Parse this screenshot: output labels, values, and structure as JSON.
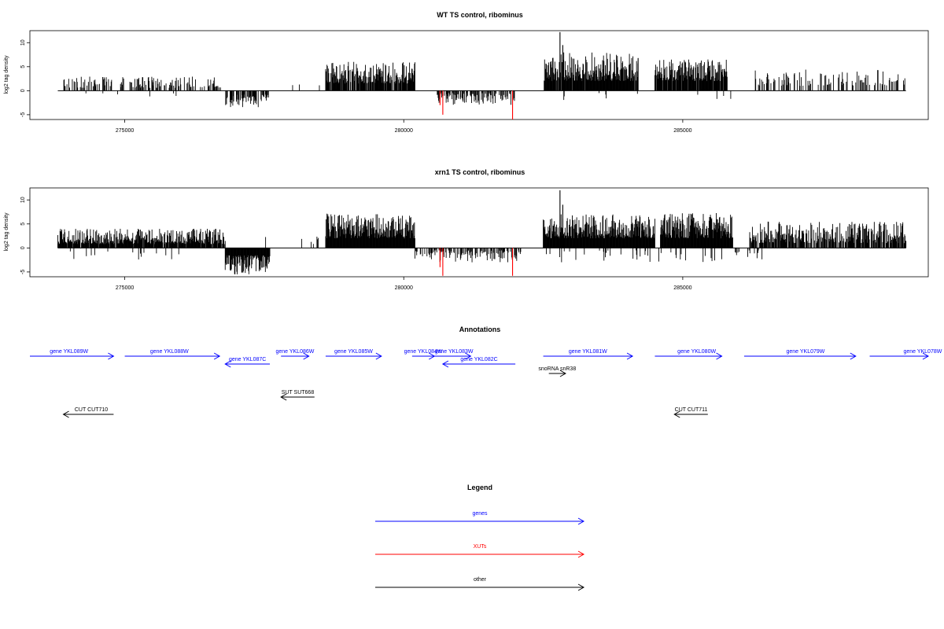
{
  "colors": {
    "gene": "#0000ff",
    "xut": "#ff0000",
    "other": "#000000",
    "xut_bar": "#ff0000",
    "bar": "#000000"
  },
  "chart_data": [
    {
      "type": "bar",
      "title": "WT TS control, ribominus",
      "ylabel": "log2 tag density",
      "xlim": [
        273300,
        289400
      ],
      "ylim": [
        -6,
        12.5
      ],
      "x_ticks": [
        275000,
        280000,
        285000
      ],
      "x_tick_labels": [
        "275000",
        "280000",
        "285000"
      ],
      "y_ticks": [
        -5,
        0,
        5,
        10
      ],
      "y_tick_labels": [
        "-5",
        "0",
        "5",
        "10"
      ],
      "baseline_range": [
        273800,
        289000
      ],
      "forward_regions": [
        {
          "start": 273900,
          "end": 276800,
          "density": 0.35,
          "min": 0.6,
          "max": 3.0
        },
        {
          "start": 278000,
          "end": 278500,
          "density": 0.04,
          "min": 1.0,
          "max": 1.5
        },
        {
          "start": 278600,
          "end": 280200,
          "density": 0.85,
          "min": 1.5,
          "max": 6.0
        },
        {
          "start": 282500,
          "end": 284200,
          "density": 0.95,
          "min": 2.0,
          "max": 8.0
        },
        {
          "start": 284500,
          "end": 285800,
          "density": 0.9,
          "min": 2.0,
          "max": 6.5
        },
        {
          "start": 286300,
          "end": 289000,
          "density": 0.3,
          "min": 1.0,
          "max": 4.5
        }
      ],
      "reverse_regions": [
        {
          "start": 274200,
          "end": 276000,
          "density": 0.02,
          "min": 0.5,
          "max": 1.2
        },
        {
          "start": 276800,
          "end": 277600,
          "density": 0.6,
          "min": 0.8,
          "max": 3.5
        },
        {
          "start": 280600,
          "end": 282000,
          "density": 0.55,
          "min": 0.5,
          "max": 3.0
        },
        {
          "start": 282500,
          "end": 285900,
          "density": 0.02,
          "min": 0.5,
          "max": 2.0
        }
      ],
      "spikes": [
        {
          "x": 282800,
          "y": 12.2
        },
        {
          "x": 282850,
          "y": 9.5
        },
        {
          "x": 284200,
          "y": 6.8
        }
      ],
      "highlight_bars": [
        {
          "x": 280650,
          "y": -3.0
        },
        {
          "x": 280700,
          "y": -5.0
        },
        {
          "x": 281950,
          "y": -6.0
        }
      ]
    },
    {
      "type": "bar",
      "title": "xrn1 TS control, ribominus",
      "ylabel": "log2 tag density",
      "xlim": [
        273300,
        289400
      ],
      "ylim": [
        -6,
        12.5
      ],
      "x_ticks": [
        275000,
        280000,
        285000
      ],
      "x_tick_labels": [
        "275000",
        "280000",
        "285000"
      ],
      "y_ticks": [
        -5,
        0,
        5,
        10
      ],
      "y_tick_labels": [
        "-5",
        "0",
        "5",
        "10"
      ],
      "baseline_range": [
        273800,
        289000
      ],
      "forward_regions": [
        {
          "start": 273800,
          "end": 276800,
          "density": 0.9,
          "min": 0.8,
          "max": 4.0
        },
        {
          "start": 277500,
          "end": 278500,
          "density": 0.1,
          "min": 0.8,
          "max": 3.0
        },
        {
          "start": 278600,
          "end": 280200,
          "density": 1.0,
          "min": 2.0,
          "max": 7.2
        },
        {
          "start": 282500,
          "end": 284500,
          "density": 1.0,
          "min": 2.0,
          "max": 7.0
        },
        {
          "start": 284600,
          "end": 285900,
          "density": 1.0,
          "min": 2.0,
          "max": 7.5
        },
        {
          "start": 286200,
          "end": 289000,
          "density": 0.8,
          "min": 1.0,
          "max": 5.5
        }
      ],
      "reverse_regions": [
        {
          "start": 274000,
          "end": 276000,
          "density": 0.06,
          "min": 0.5,
          "max": 2.5
        },
        {
          "start": 276800,
          "end": 277600,
          "density": 1.0,
          "min": 1.5,
          "max": 5.5
        },
        {
          "start": 280200,
          "end": 282100,
          "density": 0.5,
          "min": 0.5,
          "max": 3.0
        },
        {
          "start": 282500,
          "end": 286500,
          "density": 0.12,
          "min": 0.5,
          "max": 3.0
        }
      ],
      "spikes": [
        {
          "x": 282800,
          "y": 12.0
        },
        {
          "x": 282850,
          "y": 9.0
        }
      ],
      "highlight_bars": [
        {
          "x": 280650,
          "y": -4.0
        },
        {
          "x": 280700,
          "y": -5.8
        },
        {
          "x": 281950,
          "y": -5.8
        }
      ]
    }
  ],
  "annotations": {
    "title": "Annotations",
    "features": [
      {
        "label": "gene YKL089W",
        "start": 273300,
        "end": 274800,
        "strand": "+",
        "track": 0,
        "color": "gene",
        "label_x": 274000
      },
      {
        "label": "gene YKL088W",
        "start": 275000,
        "end": 276700,
        "strand": "+",
        "track": 0,
        "color": "gene",
        "label_x": 275800
      },
      {
        "label": "gene YKL087C",
        "start": 276800,
        "end": 277600,
        "strand": "-",
        "track": 1,
        "color": "gene",
        "label_x": 277200
      },
      {
        "label": "gene YKL086W",
        "start": 277800,
        "end": 278300,
        "strand": "+",
        "track": 0,
        "color": "gene",
        "label_x": 278050
      },
      {
        "label": "gene YKL085W",
        "start": 278600,
        "end": 279600,
        "strand": "+",
        "track": 0,
        "color": "gene",
        "label_x": 279100
      },
      {
        "label": "gene YKL084W",
        "start": 280150,
        "end": 280550,
        "strand": "+",
        "track": 0,
        "color": "gene",
        "label_x": 280350
      },
      {
        "label": "gene YKL083W",
        "start": 280550,
        "end": 281200,
        "strand": "+",
        "track": 0,
        "color": "gene",
        "label_x": 280900
      },
      {
        "label": "gene YKL082C",
        "start": 280700,
        "end": 282000,
        "strand": "-",
        "track": 1,
        "color": "gene",
        "label_x": 281350
      },
      {
        "label": "gene YKL081W",
        "start": 282500,
        "end": 284100,
        "strand": "+",
        "track": 0,
        "color": "gene",
        "label_x": 283300
      },
      {
        "label": "gene YKL080W",
        "start": 284500,
        "end": 285700,
        "strand": "+",
        "track": 0,
        "color": "gene",
        "label_x": 285250
      },
      {
        "label": "gene YKL079W",
        "start": 286100,
        "end": 288100,
        "strand": "+",
        "track": 0,
        "color": "gene",
        "label_x": 287200
      },
      {
        "label": "gene YKL078W",
        "start": 288350,
        "end": 289400,
        "strand": "+",
        "track": 0,
        "color": "gene",
        "label_x": 289300
      },
      {
        "label": "snoRNA snR38",
        "start": 282600,
        "end": 282900,
        "strand": "+",
        "track": 2,
        "color": "other",
        "label_x": 282750
      },
      {
        "label": "SUT SUT668",
        "start": 277800,
        "end": 278400,
        "strand": "-",
        "track": 3,
        "color": "other",
        "label_x": 278100
      },
      {
        "label": "CUT CUT710",
        "start": 273900,
        "end": 274800,
        "strand": "-",
        "track": 4,
        "color": "other",
        "label_x": 274400
      },
      {
        "label": "CUT CUT711",
        "start": 284850,
        "end": 285450,
        "strand": "-",
        "track": 4,
        "color": "other",
        "label_x": 285150
      }
    ]
  },
  "legend": {
    "title": "Legend",
    "items": [
      {
        "label": "genes",
        "color": "gene"
      },
      {
        "label": "XUTs",
        "color": "xut"
      },
      {
        "label": "other",
        "color": "other"
      }
    ]
  }
}
